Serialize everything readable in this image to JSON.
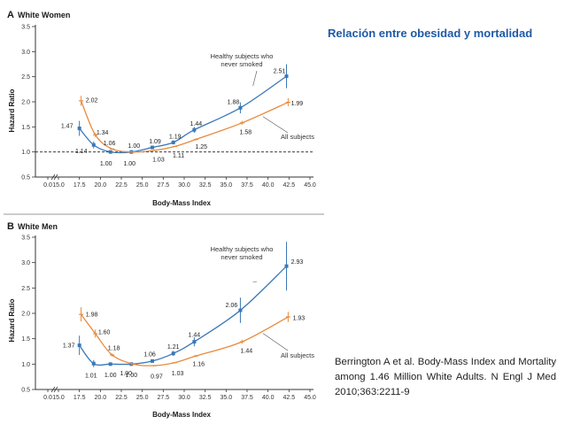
{
  "slide": {
    "title": "Relación entre obesidad y mortalidad",
    "citation": "Berrington A et al.  Body-Mass Index and Mortality among 1.46 Million White Adults. N Engl J Med 2010;363:2211-9"
  },
  "colors": {
    "healthy": "#3a78b8",
    "all": "#e88a3c",
    "axis": "#333333",
    "panel_tag": "#1a1a1a"
  },
  "chart_data": [
    {
      "type": "line",
      "panel_letter": "A",
      "title": "White Women",
      "xlabel": "Body-Mass Index",
      "ylabel": "Hazard Ratio",
      "x_ticks": [
        "0.0",
        "15.0",
        "17.5",
        "20.0",
        "22.5",
        "25.0",
        "27.5",
        "30.0",
        "32.5",
        "35.0",
        "37.5",
        "40.0",
        "42.5",
        "45.0"
      ],
      "y_ticks": [
        "0.5",
        "1.0",
        "1.5",
        "2.0",
        "2.5",
        "3.0",
        "3.5"
      ],
      "xlim": [
        15.0,
        45.0
      ],
      "ylim": [
        0.5,
        3.5
      ],
      "reference_line": 1.0,
      "series": [
        {
          "name": "Healthy subjects who never smoked",
          "key": "healthy",
          "x": [
            17.5,
            19.2,
            21.2,
            23.7,
            26.2,
            28.7,
            31.2,
            36.7,
            42.2
          ],
          "y": [
            1.47,
            1.14,
            1.0,
            1.0,
            1.09,
            1.19,
            1.44,
            1.88,
            2.51
          ],
          "ci_low": [
            1.32,
            1.07,
            0.98,
            0.98,
            1.06,
            1.15,
            1.38,
            1.77,
            2.27
          ],
          "ci_high": [
            1.62,
            1.21,
            1.02,
            1.02,
            1.12,
            1.23,
            1.5,
            1.99,
            2.75
          ],
          "labels": [
            "1.47",
            "1.14",
            "1.00",
            "1.00",
            "1.09",
            "1.19",
            "1.44",
            "1.88",
            "2.51"
          ]
        },
        {
          "name": "All subjects",
          "key": "all",
          "x": [
            17.7,
            19.4,
            21.4,
            23.9,
            26.4,
            28.9,
            31.4,
            36.9,
            42.4
          ],
          "y": [
            2.02,
            1.34,
            1.06,
            1.0,
            1.03,
            1.11,
            1.25,
            1.58,
            1.99
          ],
          "ci_low": [
            1.92,
            1.3,
            1.05,
            0.99,
            1.02,
            1.1,
            1.23,
            1.54,
            1.91
          ],
          "ci_high": [
            2.12,
            1.38,
            1.07,
            1.01,
            1.04,
            1.12,
            1.27,
            1.62,
            2.07
          ],
          "labels": [
            "2.02",
            "1.34",
            "1.06",
            "1.00",
            "1.03",
            "1.11",
            "1.25",
            "1.58",
            "1.99"
          ]
        }
      ]
    },
    {
      "type": "line",
      "panel_letter": "B",
      "title": "White Men",
      "xlabel": "Body-Mass Index",
      "ylabel": "Hazard Ratio",
      "x_ticks": [
        "0.0",
        "15.0",
        "17.5",
        "20.0",
        "22.5",
        "25.0",
        "27.5",
        "30.0",
        "32.5",
        "35.0",
        "37.5",
        "40.0",
        "42.5",
        "45.0"
      ],
      "y_ticks": [
        "0.5",
        "1.0",
        "1.5",
        "2.0",
        "2.5",
        "3.0",
        "3.5"
      ],
      "xlim": [
        15.0,
        45.0
      ],
      "ylim": [
        0.5,
        3.5
      ],
      "reference_line": null,
      "series": [
        {
          "name": "Healthy subjects who never smoked",
          "key": "healthy",
          "x": [
            17.5,
            19.2,
            21.2,
            23.7,
            26.2,
            28.7,
            31.2,
            36.7,
            42.2
          ],
          "y": [
            1.37,
            1.01,
            1.0,
            1.0,
            1.06,
            1.21,
            1.44,
            2.06,
            2.93
          ],
          "ci_low": [
            1.18,
            0.94,
            0.97,
            0.98,
            1.03,
            1.16,
            1.35,
            1.81,
            2.45
          ],
          "ci_high": [
            1.56,
            1.08,
            1.03,
            1.02,
            1.09,
            1.26,
            1.53,
            2.31,
            3.41
          ],
          "labels": [
            "1.37",
            "1.01",
            "1.00",
            "1.00",
            "1.06",
            "1.21",
            "1.44",
            "2.06",
            "2.93"
          ]
        },
        {
          "name": "All subjects",
          "key": "all",
          "x": [
            17.7,
            19.4,
            21.4,
            23.9,
            26.4,
            28.9,
            31.4,
            36.9,
            42.4
          ],
          "y": [
            1.98,
            1.6,
            1.18,
            1.0,
            0.97,
            1.03,
            1.16,
            1.44,
            1.93
          ],
          "ci_low": [
            1.84,
            1.52,
            1.15,
            0.99,
            0.96,
            1.02,
            1.14,
            1.4,
            1.83
          ],
          "ci_high": [
            2.12,
            1.68,
            1.21,
            1.01,
            0.98,
            1.04,
            1.18,
            1.48,
            2.03
          ],
          "labels": [
            "1.98",
            "1.60",
            "1.18",
            "1.00",
            "0.97",
            "1.03",
            "1.16",
            "1.44",
            "1.93"
          ]
        }
      ]
    }
  ]
}
